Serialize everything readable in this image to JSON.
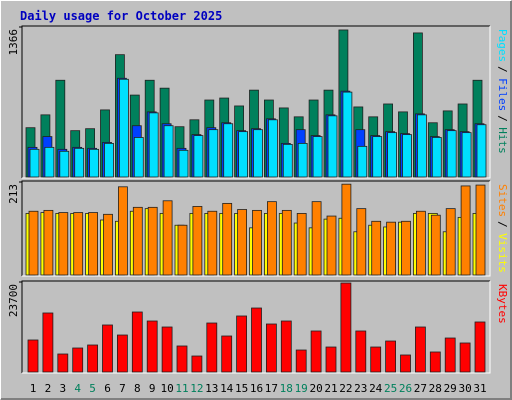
{
  "title": "Daily usage for October 2025",
  "chart_data": [
    {
      "type": "bar",
      "ylim": [
        0,
        1366
      ],
      "yticks": [
        1366
      ],
      "series": [
        {
          "name": "Hits",
          "color": "#00805c",
          "values": [
            449,
            566,
            881,
            422,
            440,
            611,
            1114,
            746,
            881,
            809,
            458,
            521,
            701,
            719,
            647,
            791,
            701,
            629,
            548,
            701,
            791,
            1339,
            638,
            548,
            665,
            593,
            1312,
            494,
            602,
            665,
            881
          ]
        },
        {
          "name": "Files",
          "color": "#0040ff",
          "values": [
            270,
            368,
            252,
            270,
            261,
            315,
            899,
            467,
            593,
            485,
            261,
            386,
            449,
            494,
            422,
            440,
            530,
            306,
            431,
            377,
            566,
            782,
            431,
            377,
            413,
            395,
            575,
            368,
            431,
            413,
            485
          ]
        },
        {
          "name": "Pages",
          "color": "#00e0ff",
          "values": [
            252,
            270,
            234,
            261,
            252,
            306,
            890,
            360,
            584,
            467,
            243,
            377,
            431,
            485,
            413,
            431,
            521,
            297,
            306,
            368,
            557,
            773,
            279,
            368,
            404,
            386,
            566,
            360,
            422,
            404,
            476
          ]
        }
      ]
    },
    {
      "type": "bar",
      "ylim": [
        0,
        213
      ],
      "yticks": [
        213
      ],
      "series": [
        {
          "name": "Visits",
          "color": "#ffff00",
          "values": [
            141,
            143,
            141,
            141,
            141,
            126,
            123,
            146,
            152,
            141,
            114,
            141,
            141,
            141,
            141,
            108,
            141,
            141,
            119,
            108,
            128,
            130,
            99,
            114,
            110,
            121,
            141,
            141,
            99,
            132,
            141
          ]
        },
        {
          "name": "Sites",
          "color": "#ff8000",
          "values": [
            146,
            148,
            143,
            143,
            143,
            139,
            202,
            155,
            155,
            170,
            114,
            157,
            146,
            164,
            150,
            148,
            168,
            148,
            141,
            168,
            135,
            208,
            152,
            123,
            121,
            123,
            146,
            137,
            152,
            204,
            206
          ]
        }
      ]
    },
    {
      "type": "bar",
      "ylim": [
        0,
        23700
      ],
      "yticks": [
        23700
      ],
      "categories": [
        "1",
        "2",
        "3",
        "4",
        "5",
        "6",
        "7",
        "8",
        "9",
        "10",
        "11",
        "12",
        "13",
        "14",
        "15",
        "16",
        "17",
        "18",
        "19",
        "20",
        "21",
        "22",
        "23",
        "24",
        "25",
        "26",
        "27",
        "28",
        "29",
        "30",
        "31"
      ],
      "category_colors": [
        "#000000",
        "#000000",
        "#000000",
        "#00805c",
        "#00805c",
        "#000000",
        "#000000",
        "#000000",
        "#000000",
        "#000000",
        "#00805c",
        "#00805c",
        "#000000",
        "#000000",
        "#000000",
        "#000000",
        "#000000",
        "#00805c",
        "#00805c",
        "#000000",
        "#000000",
        "#000000",
        "#000000",
        "#000000",
        "#00805c",
        "#00805c",
        "#000000",
        "#000000",
        "#000000",
        "#000000",
        "#000000"
      ],
      "series": [
        {
          "name": "KBytes",
          "color": "#ff0000",
          "values": [
            8430,
            15540,
            4740,
            6320,
            7110,
            12380,
            9740,
            15800,
            13430,
            11850,
            6850,
            4210,
            12900,
            9480,
            14750,
            16850,
            12640,
            13430,
            5790,
            10800,
            6580,
            23430,
            10800,
            6580,
            8160,
            4480,
            11850,
            5270,
            8950,
            7640,
            13170
          ]
        }
      ]
    }
  ]
}
